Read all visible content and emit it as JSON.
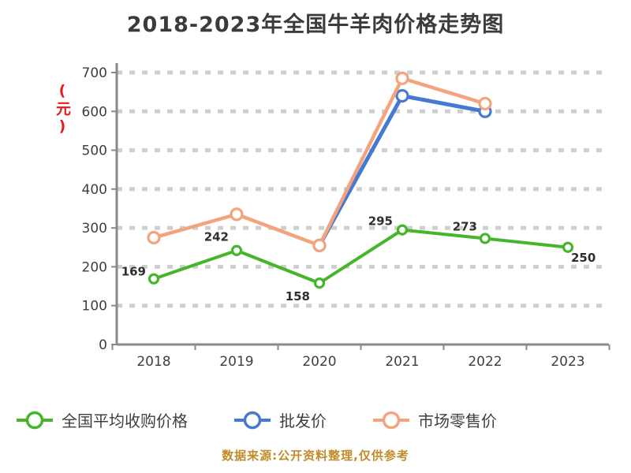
{
  "title": "2018-2023年全国牛羊肉价格走势图",
  "caption": "数据来源:公开资料整理,仅供参考",
  "colors": {
    "background": "#ffffff",
    "title": "#3b3b3b",
    "axis": "#8a8a8a",
    "tick_text": "#3f3f3f",
    "grid": "#cfcfcf",
    "point_label": "#2f2f2f",
    "caption": "#c08b28",
    "unit": "#e01e1e",
    "green_series": "#45b62a",
    "blue_series": "#4679d2",
    "orange_series": "#f3a47c"
  },
  "y_axis": {
    "unit": "(元)",
    "ticks": [
      0,
      100,
      200,
      300,
      400,
      500,
      600,
      700
    ]
  },
  "x_axis": {
    "categories": [
      "2018",
      "2019",
      "2020",
      "2021",
      "2022",
      "2023"
    ]
  },
  "legend": [
    {
      "label": "全国平均收购价格",
      "color": "#45b62a"
    },
    {
      "label": "批发价",
      "color": "#4679d2"
    },
    {
      "label": "市场零售价",
      "color": "#f3a47c"
    }
  ],
  "chart_data": {
    "type": "line",
    "title": "2018-2023年全国牛羊肉价格走势图",
    "x": [
      "2018",
      "2019",
      "2020",
      "2021",
      "2022",
      "2023"
    ],
    "ylim": [
      0,
      700
    ],
    "y_tick_step": 100,
    "grid": "horizontal-dashed",
    "legend_position": "bottom",
    "draw_order": [
      1,
      2,
      0
    ],
    "series": [
      {
        "name": "全国平均收购价格",
        "color": "#45b62a",
        "values": [
          169,
          242,
          158,
          295,
          273,
          250
        ],
        "show_labels": true,
        "labels": [
          "169",
          "242",
          "158",
          "295",
          "273",
          "250"
        ],
        "label_offsets": [
          [
            -10,
            -4
          ],
          [
            -10,
            -12
          ],
          [
            -12,
            22
          ],
          [
            -12,
            -6
          ],
          [
            -10,
            -10
          ],
          [
            4,
            18
          ]
        ],
        "marker": "circle-white-fill",
        "line_width": 4,
        "marker_radius": 5.5
      },
      {
        "name": "批发价",
        "color": "#4679d2",
        "values": [
          null,
          null,
          255,
          640,
          600,
          null
        ],
        "show_labels": false,
        "marker": "circle-white-fill",
        "line_width": 5,
        "marker_radius": 7
      },
      {
        "name": "市场零售价",
        "color": "#f3a47c",
        "values": [
          275,
          335,
          255,
          685,
          620,
          null
        ],
        "show_labels": false,
        "marker": "circle-white-fill",
        "line_width": 4.5,
        "marker_radius": 7
      }
    ]
  }
}
